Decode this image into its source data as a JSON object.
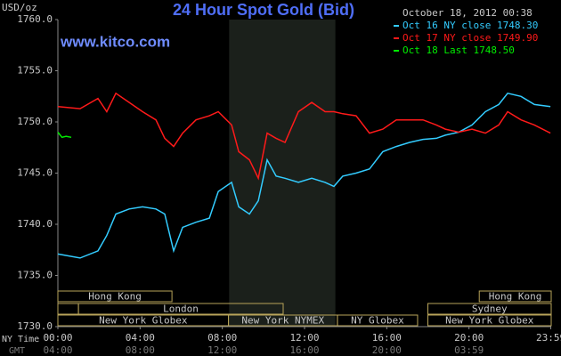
{
  "chart_data": {
    "type": "line",
    "title": "24 Hour Spot Gold (Bid)",
    "y_label": "USD/oz",
    "source": "www.kitco.com",
    "timestamp": "October 18, 2012 00:38",
    "xlim": [
      0,
      24
    ],
    "ylim": [
      1730,
      1760
    ],
    "xticks": [
      {
        "value": 0,
        "label": "00:00"
      },
      {
        "value": 4,
        "label": "04:00"
      },
      {
        "value": 8,
        "label": "08:00"
      },
      {
        "value": 12,
        "label": "12:00"
      },
      {
        "value": 16,
        "label": "16:00"
      },
      {
        "value": 20,
        "label": "20:00"
      },
      {
        "value": 23.98,
        "label": "23:59"
      }
    ],
    "x_row_label": "NY Time",
    "x2_row_label": "GMT",
    "x2_labels": [
      "04:00",
      "08:00",
      "12:00",
      "16:00",
      "20:00",
      "03:59"
    ],
    "yticks": [
      {
        "value": 1730,
        "label": "1730.0"
      },
      {
        "value": 1735,
        "label": "1735.0"
      },
      {
        "value": 1740,
        "label": "1740.0"
      },
      {
        "value": 1745,
        "label": "1745.0"
      },
      {
        "value": 1750,
        "label": "1750.0"
      },
      {
        "value": 1755,
        "label": "1755.0"
      },
      {
        "value": 1760,
        "label": "1760.0"
      }
    ],
    "grid": false,
    "shaded": [
      8.33,
      13.5
    ],
    "session_rows": [
      [
        {
          "label": "Hong Kong",
          "start": 0,
          "end": 5.55
        },
        {
          "label": "Hong Kong",
          "start": 20.5,
          "end": 24
        }
      ],
      [
        {
          "label": null,
          "start": 0,
          "end": 1.0
        },
        {
          "label": "London",
          "start": 1.0,
          "end": 10.96
        },
        {
          "label": "Sydney",
          "start": 18,
          "end": 24
        }
      ],
      [
        {
          "label": "New York Globex",
          "start": 0,
          "end": 8.3
        },
        {
          "label": "New York NYMEX",
          "start": 8.3,
          "end": 13.6
        },
        {
          "label": "NY Globex",
          "start": 13.6,
          "end": 17.5
        },
        {
          "label": "New York Globex",
          "start": 18,
          "end": 24
        }
      ]
    ],
    "series": [
      {
        "name": "Oct 16 NY close 1748.30",
        "color": "#33ccff",
        "x": [
          0,
          1.08,
          1.95,
          2.38,
          2.82,
          3.47,
          4.12,
          4.77,
          5.2,
          5.63,
          6.07,
          6.72,
          7.37,
          7.8,
          8.45,
          8.8,
          9.32,
          9.75,
          10.18,
          10.62,
          11.05,
          11.7,
          12.35,
          13.0,
          13.43,
          13.86,
          14.51,
          15.16,
          15.81,
          16.46,
          17.11,
          17.76,
          18.41,
          18.85,
          19.5,
          20.15,
          20.8,
          21.45,
          21.88,
          22.53,
          23.18,
          23.96
        ],
        "values": [
          1737.1,
          1736.7,
          1737.4,
          1738.9,
          1741.0,
          1741.5,
          1741.7,
          1741.5,
          1741.0,
          1737.4,
          1739.7,
          1740.2,
          1740.6,
          1743.2,
          1744.1,
          1741.7,
          1741.0,
          1742.3,
          1746.3,
          1744.7,
          1744.5,
          1744.1,
          1744.5,
          1744.1,
          1743.7,
          1744.7,
          1745.0,
          1745.4,
          1747.1,
          1747.6,
          1748.0,
          1748.3,
          1748.4,
          1748.7,
          1749.0,
          1749.7,
          1751.0,
          1751.7,
          1752.8,
          1752.5,
          1751.7,
          1751.5
        ]
      },
      {
        "name": "Oct 17 NY close 1749.90",
        "color": "#ff1a1a",
        "x": [
          0,
          1.08,
          1.95,
          2.38,
          2.82,
          3.47,
          4.12,
          4.77,
          5.2,
          5.63,
          6.07,
          6.72,
          7.37,
          7.8,
          8.45,
          8.8,
          9.32,
          9.75,
          10.18,
          10.62,
          11.05,
          11.7,
          12.35,
          13.0,
          13.43,
          13.86,
          14.51,
          15.16,
          15.81,
          16.46,
          17.11,
          17.76,
          18.41,
          18.85,
          19.5,
          20.15,
          20.8,
          21.45,
          21.88,
          22.53,
          23.18,
          23.96
        ],
        "values": [
          1751.5,
          1751.3,
          1752.3,
          1751.0,
          1752.8,
          1751.9,
          1751.0,
          1750.2,
          1748.4,
          1747.6,
          1748.9,
          1750.2,
          1750.6,
          1751.0,
          1749.7,
          1747.1,
          1746.3,
          1744.5,
          1748.9,
          1748.4,
          1748.0,
          1751.0,
          1751.9,
          1751.0,
          1751.0,
          1750.8,
          1750.6,
          1748.9,
          1749.3,
          1750.2,
          1750.2,
          1750.2,
          1749.7,
          1749.3,
          1749.0,
          1749.3,
          1748.9,
          1749.7,
          1751.0,
          1750.2,
          1749.7,
          1748.9
        ]
      },
      {
        "name": "Oct 18 Last 1748.50",
        "color": "#00ee00",
        "x": [
          0,
          0.2,
          0.4,
          0.65
        ],
        "values": [
          1749.0,
          1748.5,
          1748.6,
          1748.5
        ]
      }
    ]
  }
}
